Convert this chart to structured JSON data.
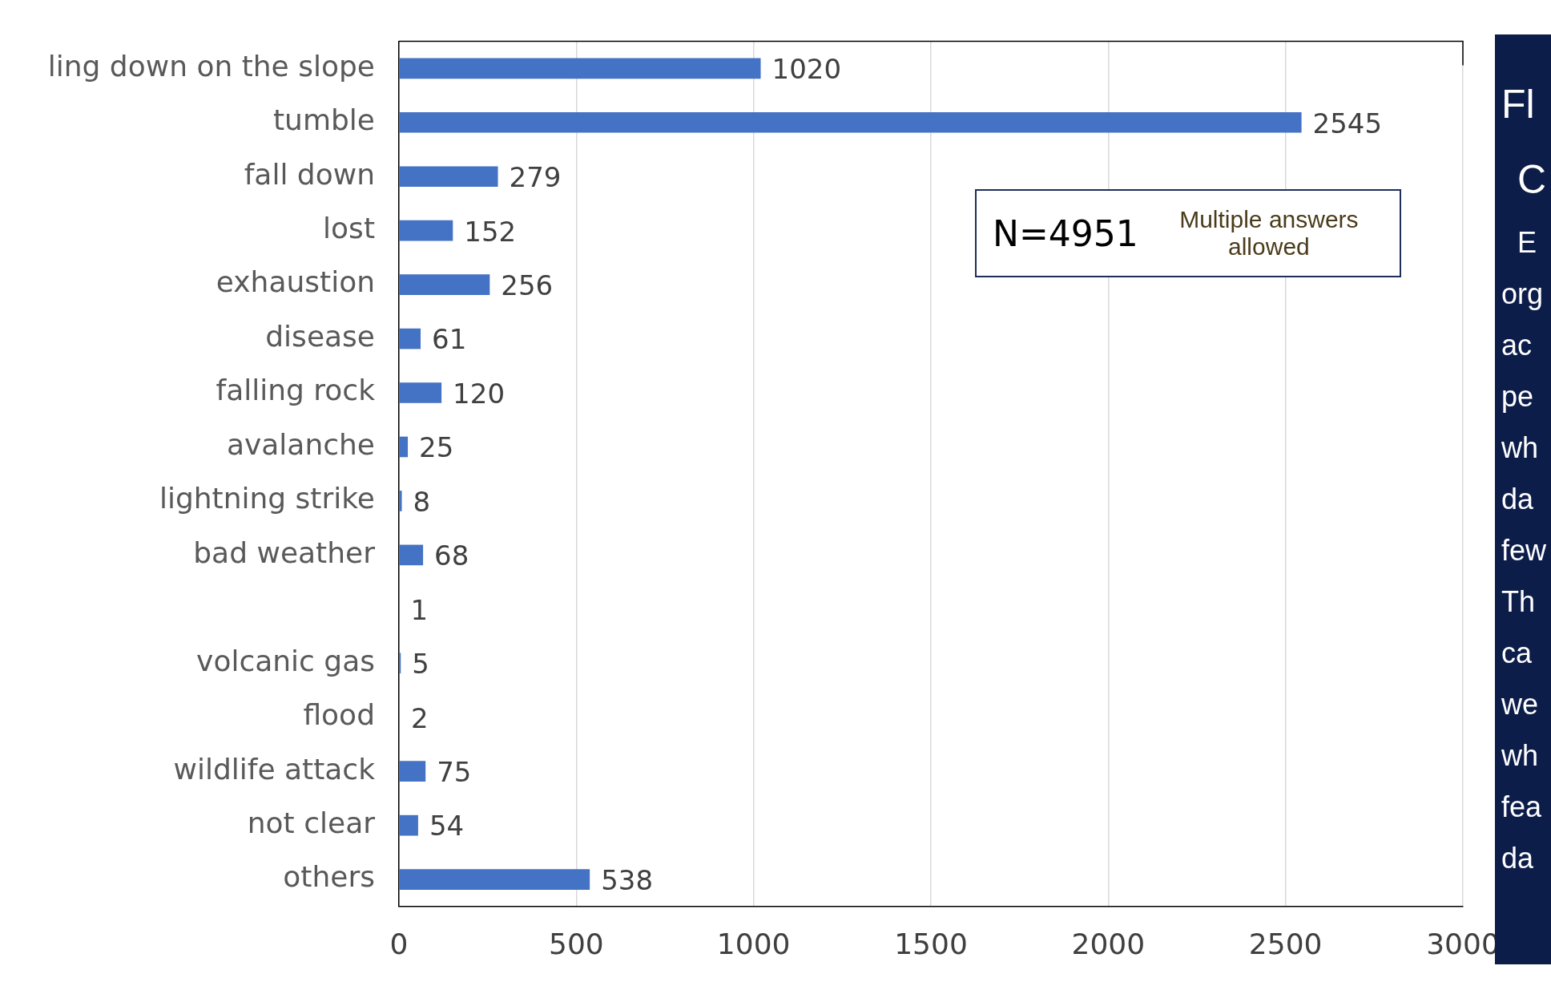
{
  "chart_data": {
    "type": "bar",
    "orientation": "horizontal",
    "categories": [
      "ling down on the slope",
      "tumble",
      "fall down",
      "lost",
      "exhaustion",
      "disease",
      "falling rock",
      "avalanche",
      "lightning strike",
      "bad weather",
      null,
      "volcanic gas",
      "flood",
      "wildlife attack",
      "not clear",
      "others"
    ],
    "series": [
      {
        "color": "#4472c4",
        "values": [
          1020,
          2545,
          279,
          152,
          256,
          61,
          120,
          25,
          8,
          68,
          1,
          5,
          2,
          75,
          54,
          538
        ]
      }
    ],
    "xlim": [
      0,
      3000
    ],
    "xticks": [
      0,
      500,
      1000,
      1500,
      2000,
      2500,
      3000
    ],
    "grid": "x",
    "legend": false,
    "data_labels": true,
    "annotations": [
      "N=4951",
      "Multiple answers allowed",
      "Fl",
      "C",
      "E",
      "org",
      "ac",
      "pe",
      "wh",
      "da",
      "few",
      "Th",
      "ca",
      "we",
      "wh",
      "fea",
      "da"
    ]
  }
}
